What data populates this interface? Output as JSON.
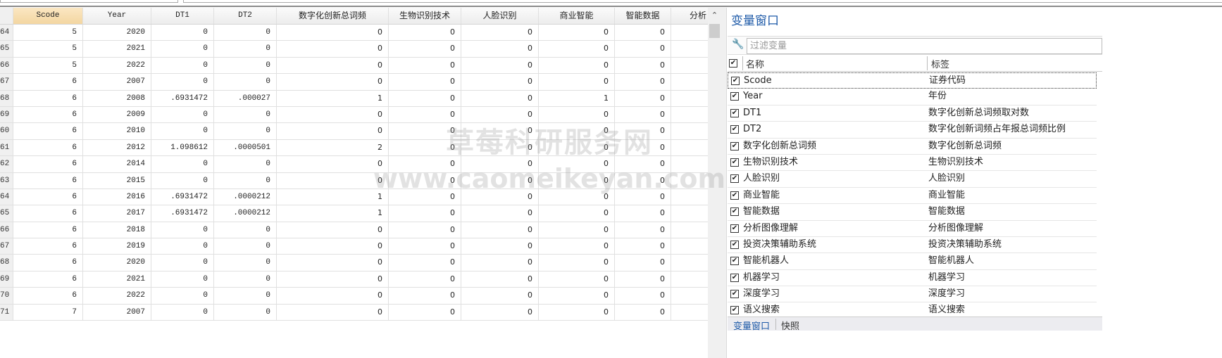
{
  "grid": {
    "columns": [
      "Scode",
      "Year",
      "DT1",
      "DT2",
      "数字化创新总词频",
      "生物识别技术",
      "人脸识别",
      "商业智能",
      "智能数据",
      "分析"
    ],
    "selected_column": "Scode",
    "rows": [
      [
        "64",
        "5",
        "2020",
        "0",
        "0",
        "0",
        "0",
        "0",
        "0",
        "0",
        ""
      ],
      [
        "65",
        "5",
        "2021",
        "0",
        "0",
        "0",
        "0",
        "0",
        "0",
        "0",
        ""
      ],
      [
        "66",
        "5",
        "2022",
        "0",
        "0",
        "0",
        "0",
        "0",
        "0",
        "0",
        ""
      ],
      [
        "67",
        "6",
        "2007",
        "0",
        "0",
        "0",
        "0",
        "0",
        "0",
        "0",
        ""
      ],
      [
        "68",
        "6",
        "2008",
        ".6931472",
        ".000027",
        "1",
        "0",
        "0",
        "1",
        "0",
        ""
      ],
      [
        "69",
        "6",
        "2009",
        "0",
        "0",
        "0",
        "0",
        "0",
        "0",
        "0",
        ""
      ],
      [
        "60",
        "6",
        "2010",
        "0",
        "0",
        "0",
        "0",
        "0",
        "0",
        "0",
        ""
      ],
      [
        "61",
        "6",
        "2012",
        "1.098612",
        ".0000501",
        "2",
        "0",
        "0",
        "0",
        "0",
        ""
      ],
      [
        "62",
        "6",
        "2014",
        "0",
        "0",
        "0",
        "0",
        "0",
        "0",
        "0",
        ""
      ],
      [
        "63",
        "6",
        "2015",
        "0",
        "0",
        "0",
        "0",
        "0",
        "0",
        "0",
        ""
      ],
      [
        "64",
        "6",
        "2016",
        ".6931472",
        ".0000212",
        "1",
        "0",
        "0",
        "0",
        "0",
        ""
      ],
      [
        "65",
        "6",
        "2017",
        ".6931472",
        ".0000212",
        "1",
        "0",
        "0",
        "0",
        "0",
        ""
      ],
      [
        "66",
        "6",
        "2018",
        "0",
        "0",
        "0",
        "0",
        "0",
        "0",
        "0",
        ""
      ],
      [
        "67",
        "6",
        "2019",
        "0",
        "0",
        "0",
        "0",
        "0",
        "0",
        "0",
        ""
      ],
      [
        "68",
        "6",
        "2020",
        "0",
        "0",
        "0",
        "0",
        "0",
        "0",
        "0",
        ""
      ],
      [
        "69",
        "6",
        "2021",
        "0",
        "0",
        "0",
        "0",
        "0",
        "0",
        "0",
        ""
      ],
      [
        "70",
        "6",
        "2022",
        "0",
        "0",
        "0",
        "0",
        "0",
        "0",
        "0",
        ""
      ],
      [
        "71",
        "7",
        "2007",
        "0",
        "0",
        "0",
        "0",
        "0",
        "0",
        "0",
        ""
      ]
    ]
  },
  "variables_panel": {
    "title": "变量窗口",
    "filter_placeholder": "过滤变量",
    "header_name": "名称",
    "header_label": "标签",
    "variables": [
      {
        "name": "Scode",
        "label": "证券代码",
        "checked": true
      },
      {
        "name": "Year",
        "label": "年份",
        "checked": true
      },
      {
        "name": "DT1",
        "label": "数字化创新总词频取对数",
        "checked": true
      },
      {
        "name": "DT2",
        "label": "数字化创新词频占年报总词频比例",
        "checked": true
      },
      {
        "name": "数字化创新总词频",
        "label": "数字化创新总词频",
        "checked": true
      },
      {
        "name": "生物识别技术",
        "label": "生物识别技术",
        "checked": true
      },
      {
        "name": "人脸识别",
        "label": "人脸识别",
        "checked": true
      },
      {
        "name": "商业智能",
        "label": "商业智能",
        "checked": true
      },
      {
        "name": "智能数据",
        "label": "智能数据",
        "checked": true
      },
      {
        "name": "分析图像理解",
        "label": "分析图像理解",
        "checked": true
      },
      {
        "name": "投资决策辅助系统",
        "label": "投资决策辅助系统",
        "checked": true
      },
      {
        "name": "智能机器人",
        "label": "智能机器人",
        "checked": true
      },
      {
        "name": "机器学习",
        "label": "机器学习",
        "checked": true
      },
      {
        "name": "深度学习",
        "label": "深度学习",
        "checked": true
      },
      {
        "name": "语义搜索",
        "label": "语义搜索",
        "checked": true
      }
    ],
    "tabs": [
      "变量窗口",
      "快照"
    ],
    "title_color": "#1e5aa8"
  },
  "watermark": {
    "line1": "草莓科研服务网",
    "line2": "www.caomeikeyan.com"
  },
  "icons": {
    "check": "✔",
    "wrench": "🔧",
    "scroll_up": "⌃"
  }
}
